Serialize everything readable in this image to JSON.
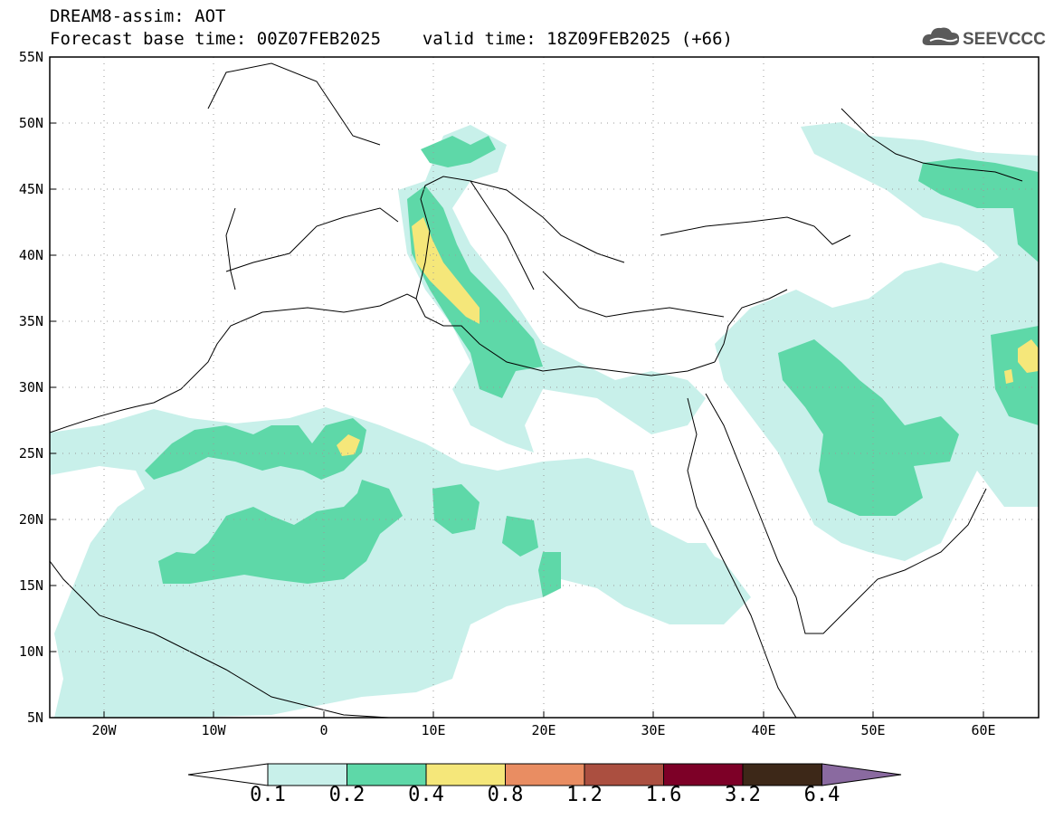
{
  "header": {
    "title": "DREAM8-assim: AOT",
    "base_time_label": "Forecast base time: 00Z07FEB2025",
    "valid_time_label": "valid time: 18Z09FEB2025 (+66)"
  },
  "logo": {
    "text": "SEEVCCC",
    "icon": "cloud-icon",
    "color": "#555555"
  },
  "map": {
    "lon_range": [
      -25,
      65
    ],
    "lat_range": [
      5,
      55
    ],
    "lat_ticks": [
      {
        "value": 55,
        "label": "55N"
      },
      {
        "value": 50,
        "label": "50N"
      },
      {
        "value": 45,
        "label": "45N"
      },
      {
        "value": 40,
        "label": "40N"
      },
      {
        "value": 35,
        "label": "35N"
      },
      {
        "value": 30,
        "label": "30N"
      },
      {
        "value": 25,
        "label": "25N"
      },
      {
        "value": 20,
        "label": "20N"
      },
      {
        "value": 15,
        "label": "15N"
      },
      {
        "value": 10,
        "label": "10N"
      },
      {
        "value": 5,
        "label": "5N"
      }
    ],
    "lon_ticks": [
      {
        "value": -20,
        "label": "20W"
      },
      {
        "value": -10,
        "label": "10W"
      },
      {
        "value": 0,
        "label": "0"
      },
      {
        "value": 10,
        "label": "10E"
      },
      {
        "value": 20,
        "label": "20E"
      },
      {
        "value": 30,
        "label": "30E"
      },
      {
        "value": 40,
        "label": "40E"
      },
      {
        "value": 50,
        "label": "50E"
      },
      {
        "value": 60,
        "label": "60E"
      }
    ],
    "grid": "dotted"
  },
  "colorbar": {
    "levels": [
      "0.1",
      "0.2",
      "0.4",
      "0.8",
      "1.2",
      "1.6",
      "3.2",
      "6.4"
    ],
    "colors": [
      "#ffffff",
      "#c8f0ea",
      "#5ed8a8",
      "#f5e77a",
      "#e98d62",
      "#ab4f40",
      "#7d0027",
      "#3d2818",
      "#8a6aa0"
    ]
  }
}
